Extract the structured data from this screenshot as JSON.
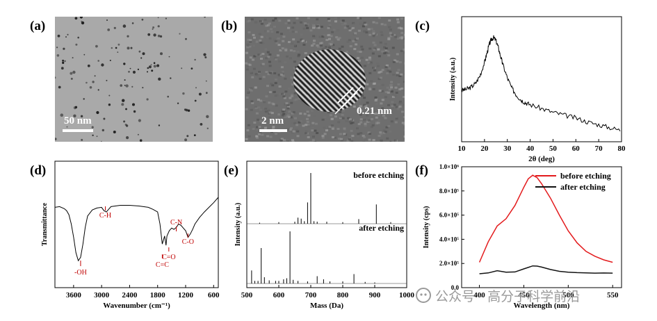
{
  "figure": {
    "panel_labels": {
      "a": "(a)",
      "b": "(b)",
      "c": "(c)",
      "d": "(d)",
      "e": "(e)",
      "f": "(f)"
    },
    "panel_a": {
      "scale_bar": "50 nm"
    },
    "panel_b": {
      "scale_bar": "2 nm",
      "lattice_spacing": "0.21 nm"
    }
  },
  "chart_data": [
    {
      "id": "c",
      "type": "line",
      "xlabel": "2θ (deg)",
      "ylabel": "Intensity (a.u.)",
      "xlim": [
        10,
        80
      ],
      "xticks": [
        "10",
        "20",
        "30",
        "40",
        "50",
        "60",
        "70",
        "80"
      ],
      "grid": false,
      "x": [
        10,
        12,
        14,
        16,
        18,
        20,
        21,
        22,
        23,
        24,
        25,
        26,
        27,
        28,
        30,
        32,
        34,
        36,
        38,
        40,
        45,
        50,
        55,
        60,
        65,
        70,
        75,
        80
      ],
      "y": [
        0.45,
        0.46,
        0.48,
        0.52,
        0.6,
        0.74,
        0.83,
        0.92,
        0.98,
        1.0,
        0.97,
        0.9,
        0.81,
        0.72,
        0.58,
        0.47,
        0.4,
        0.35,
        0.32,
        0.3,
        0.26,
        0.22,
        0.19,
        0.16,
        0.12,
        0.09,
        0.06,
        0.03
      ]
    },
    {
      "id": "d",
      "type": "line",
      "xlabel": "Wavenumber (cm⁻¹)",
      "ylabel": "Transmittance",
      "xlim": [
        4000,
        500
      ],
      "xticks": [
        "3600",
        "3000",
        "2400",
        "1800",
        "1200",
        "600"
      ],
      "annotations": [
        "-OH",
        "C-H",
        "C-N",
        "C=O",
        "C=C",
        "C-O"
      ],
      "x": [
        4000,
        3900,
        3800,
        3750,
        3700,
        3650,
        3600,
        3550,
        3500,
        3450,
        3400,
        3350,
        3300,
        3200,
        3100,
        3000,
        2950,
        2900,
        2850,
        2800,
        2600,
        2400,
        2200,
        2000,
        1900,
        1800,
        1750,
        1700,
        1650,
        1620,
        1600,
        1550,
        1500,
        1450,
        1400,
        1350,
        1300,
        1250,
        1200,
        1150,
        1100,
        1050,
        1000,
        900,
        800,
        700,
        600,
        500
      ],
      "y": [
        0.85,
        0.86,
        0.83,
        0.8,
        0.74,
        0.6,
        0.4,
        0.17,
        0.05,
        0.1,
        0.3,
        0.55,
        0.72,
        0.81,
        0.84,
        0.85,
        0.8,
        0.78,
        0.82,
        0.86,
        0.88,
        0.88,
        0.87,
        0.85,
        0.82,
        0.78,
        0.6,
        0.3,
        0.42,
        0.28,
        0.42,
        0.5,
        0.54,
        0.52,
        0.55,
        0.6,
        0.58,
        0.54,
        0.5,
        0.4,
        0.45,
        0.52,
        0.6,
        0.7,
        0.78,
        0.85,
        0.92,
        1.0
      ]
    },
    {
      "id": "e",
      "type": "bar",
      "xlabel": "Mass (Da)",
      "ylabel": "Intensity (a.u.)",
      "xlim": [
        500,
        1000
      ],
      "xticks": [
        "500",
        "600",
        "700",
        "800",
        "900",
        "1000"
      ],
      "series": [
        {
          "name": "before etching",
          "x": [
            540,
            600,
            650,
            660,
            670,
            680,
            690,
            700,
            710,
            720,
            750,
            800,
            850,
            905,
            950
          ],
          "values": [
            0.02,
            0.03,
            0.04,
            0.12,
            0.1,
            0.05,
            0.42,
            1.0,
            0.05,
            0.04,
            0.04,
            0.03,
            0.09,
            0.38,
            0.03
          ]
        },
        {
          "name": "after etching",
          "x": [
            515,
            525,
            535,
            545,
            555,
            570,
            590,
            600,
            615,
            625,
            635,
            645,
            660,
            690,
            720,
            740,
            760,
            800,
            835,
            870,
            900
          ],
          "values": [
            0.25,
            0.05,
            0.05,
            0.68,
            0.12,
            0.06,
            0.05,
            0.05,
            0.08,
            0.1,
            1.0,
            0.07,
            0.05,
            0.04,
            0.14,
            0.08,
            0.04,
            0.04,
            0.18,
            0.03,
            0.02
          ]
        }
      ]
    },
    {
      "id": "f",
      "type": "line",
      "xlabel": "Wavelength (nm)",
      "ylabel": "Intensity (cps)",
      "xlim": [
        380,
        560
      ],
      "ylim": [
        0,
        1000000
      ],
      "xticks": [
        "400",
        "450",
        "500",
        "550"
      ],
      "yticks": [
        "0.0",
        "2.0×10⁵",
        "4.0×10⁵",
        "6.0×10⁵",
        "8.0×10⁵",
        "1.0×10⁶"
      ],
      "legend": "top-right",
      "series": [
        {
          "name": "before etching",
          "color": "#e31a1c",
          "x": [
            400,
            410,
            420,
            430,
            440,
            450,
            455,
            460,
            465,
            470,
            480,
            490,
            500,
            510,
            520,
            530,
            540,
            550
          ],
          "values": [
            210000,
            380000,
            510000,
            570000,
            680000,
            830000,
            900000,
            930000,
            910000,
            860000,
            740000,
            600000,
            470000,
            370000,
            300000,
            260000,
            230000,
            210000
          ]
        },
        {
          "name": "after etching",
          "color": "#111111",
          "x": [
            400,
            410,
            420,
            430,
            440,
            450,
            460,
            465,
            470,
            480,
            490,
            500,
            510,
            520,
            530,
            540,
            550
          ],
          "values": [
            115000,
            122000,
            140000,
            128000,
            130000,
            155000,
            180000,
            178000,
            170000,
            150000,
            135000,
            128000,
            124000,
            122000,
            120000,
            121000,
            120000
          ]
        }
      ]
    }
  ],
  "watermark": {
    "text": "公众号 · 高分子科学前沿"
  }
}
